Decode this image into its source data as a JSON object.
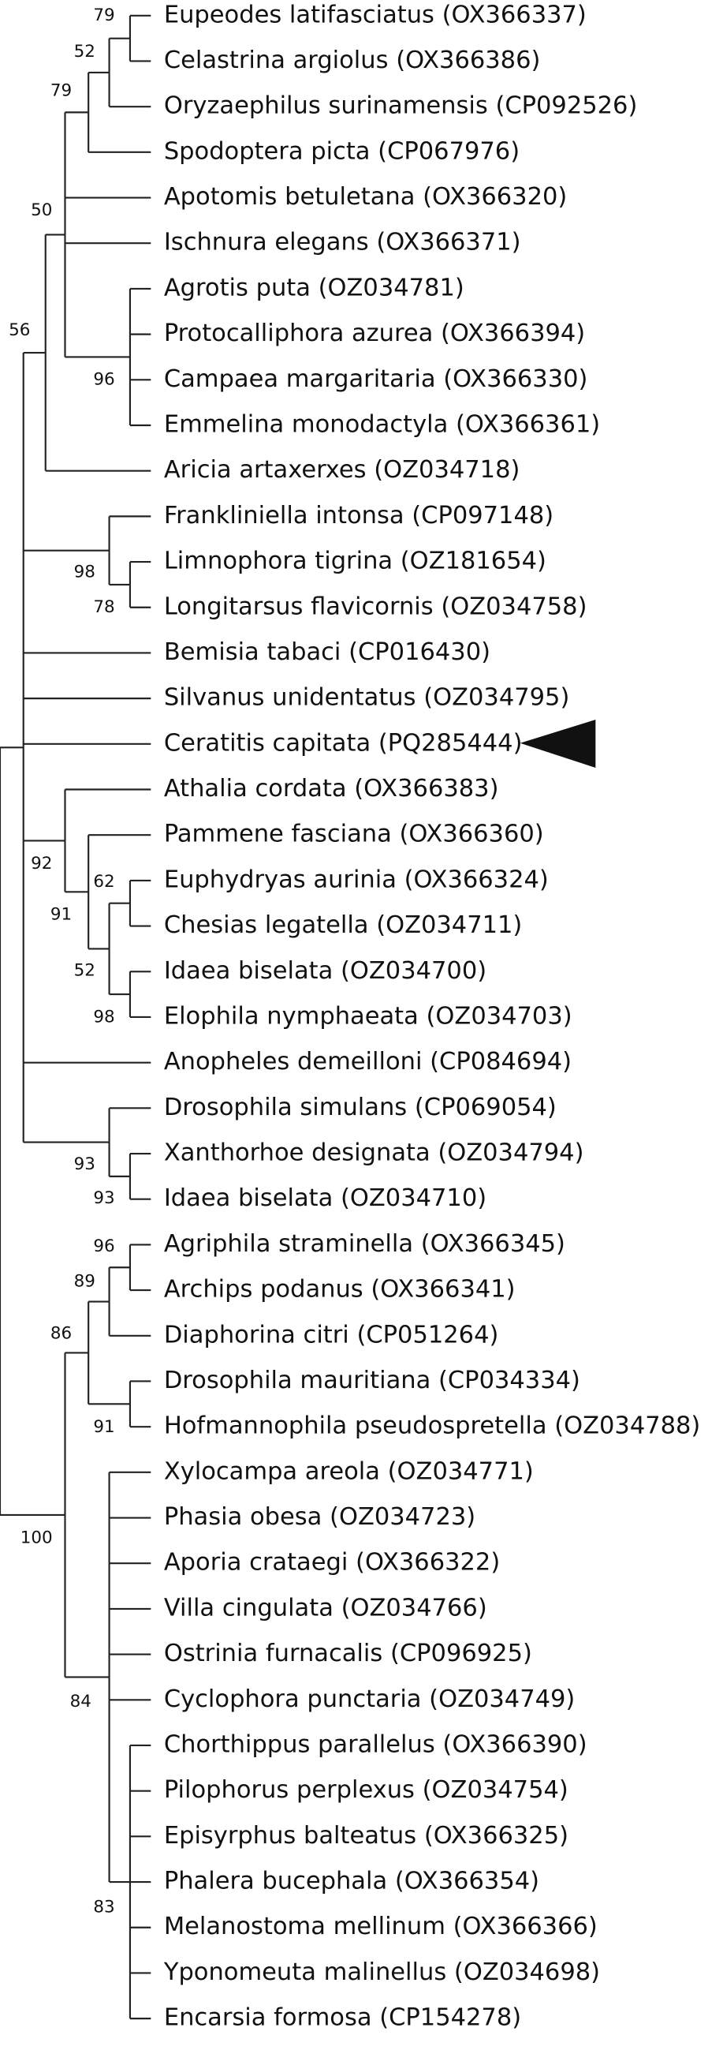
{
  "leaves": [
    "Eupeodes latifasciatus (OX366337)",
    "Celastrina argiolus (OX366386)",
    "Oryzaephilus surinamensis (CP092526)",
    "Spodoptera picta (CP067976)",
    "Apotomis betuletana (OX366320)",
    "Ischnura elegans (OX366371)",
    "Agrotis puta (OZ034781)",
    "Protocalliphora azurea (OX366394)",
    "Campaea margaritaria (OX366330)",
    "Emmelina monodactyla (OX366361)",
    "Aricia artaxerxes (OZ034718)",
    "Frankliniella intonsa (CP097148)",
    "Limnophora tigrina (OZ181654)",
    "Longitarsus flavicornis (OZ034758)",
    "Bemisia tabaci (CP016430)",
    "Silvanus unidentatus (OZ034795)",
    "Ceratitis capitata (PQ285444)",
    "Athalia cordata (OX366383)",
    "Pammene fasciana (OX366360)",
    "Euphydryas aurinia (OX366324)",
    "Chesias legatella (OZ034711)",
    "Idaea biselata (OZ034700)",
    "Elophila nymphaeata (OZ034703)",
    "Anopheles demeilloni (CP084694)",
    "Drosophila simulans (CP069054)",
    "Xanthorhoe designata (OZ034794)",
    "Idaea biselata (OZ034710)",
    "Agriphila straminella (OX366345)",
    "Archips podanus (OX366341)",
    "Diaphorina citri (CP051264)",
    "Drosophila mauritiana (CP034334)",
    "Hofmannophila pseudospretella (OZ034788)",
    "Xylocampa areola (OZ034771)",
    "Phasia obesa (OZ034723)",
    "Aporia crataegi (OX366322)",
    "Villa cingulata (OZ034766)",
    "Ostrinia furnacalis (CP096925)",
    "Cyclophora punctaria (OZ034749)",
    "Chorthippus parallelus (OX366390)",
    "Pilophorus perplexus (OZ034754)",
    "Episyrphus balteatus (OX366325)",
    "Phalera bucephala (OX366354)",
    "Melanostoma mellinum (OX366366)",
    "Yponomeuta malinellus (OZ034698)",
    "Encarsia formosa (CP154278)"
  ],
  "support": [
    "79",
    "52",
    "79",
    "50",
    "56",
    "96",
    "98",
    "78",
    "92",
    "62",
    "91",
    "52",
    "98",
    "93",
    "93",
    "96",
    "89",
    "86",
    "91",
    "100",
    "84",
    "83"
  ]
}
